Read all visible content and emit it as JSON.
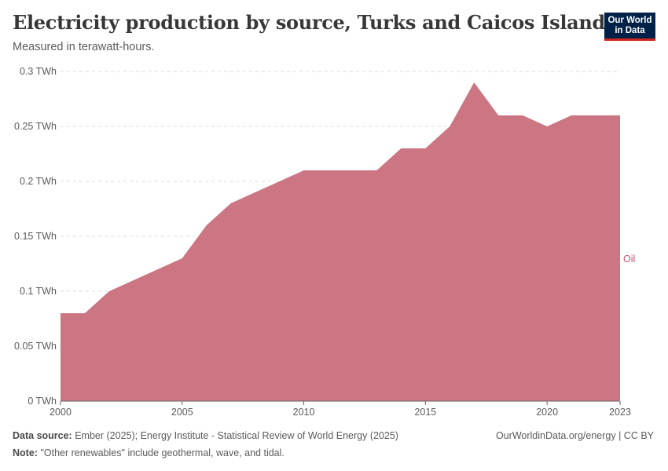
{
  "header": {
    "title": "Electricity production by source, Turks and Caicos Islands",
    "subtitle": "Measured in terawatt-hours."
  },
  "logo": {
    "line1": "Our World",
    "line2": "in Data"
  },
  "footer": {
    "source_label": "Data source:",
    "source_text": "Ember (2025); Energy Institute - Statistical Review of World Energy (2025)",
    "note_label": "Note:",
    "note_text": "\"Other renewables\" include geothermal, wave, and tidal.",
    "credit": "OurWorldinData.org/energy | CC BY"
  },
  "colors": {
    "oil": "#cc7583",
    "oil_label": "#c05868",
    "grid": "#dddddd",
    "axis": "#666666",
    "text": "#5b5b5b"
  },
  "chart_data": {
    "type": "area",
    "title": "Electricity production by source, Turks and Caicos Islands",
    "ylabel": "Measured in terawatt-hours.",
    "ylim": [
      0,
      0.3
    ],
    "xlim": [
      2000,
      2023
    ],
    "y_ticks": [
      {
        "value": 0,
        "label": "0 TWh"
      },
      {
        "value": 0.05,
        "label": "0.05 TWh"
      },
      {
        "value": 0.1,
        "label": "0.1 TWh"
      },
      {
        "value": 0.15,
        "label": "0.15 TWh"
      },
      {
        "value": 0.2,
        "label": "0.2 TWh"
      },
      {
        "value": 0.25,
        "label": "0.25 TWh"
      },
      {
        "value": 0.3,
        "label": "0.3 TWh"
      }
    ],
    "x_ticks": [
      {
        "value": 2000,
        "label": "2000"
      },
      {
        "value": 2005,
        "label": "2005"
      },
      {
        "value": 2010,
        "label": "2010"
      },
      {
        "value": 2015,
        "label": "2015"
      },
      {
        "value": 2020,
        "label": "2020"
      },
      {
        "value": 2023,
        "label": "2023"
      }
    ],
    "x": [
      2000,
      2001,
      2002,
      2003,
      2004,
      2005,
      2006,
      2007,
      2008,
      2009,
      2010,
      2011,
      2012,
      2013,
      2014,
      2015,
      2016,
      2017,
      2018,
      2019,
      2020,
      2021,
      2022,
      2023
    ],
    "series": [
      {
        "name": "Oil",
        "values": [
          0.08,
          0.08,
          0.1,
          0.11,
          0.12,
          0.13,
          0.16,
          0.18,
          0.19,
          0.2,
          0.21,
          0.21,
          0.21,
          0.21,
          0.23,
          0.23,
          0.25,
          0.29,
          0.26,
          0.26,
          0.25,
          0.26,
          0.26,
          0.26
        ]
      }
    ]
  }
}
